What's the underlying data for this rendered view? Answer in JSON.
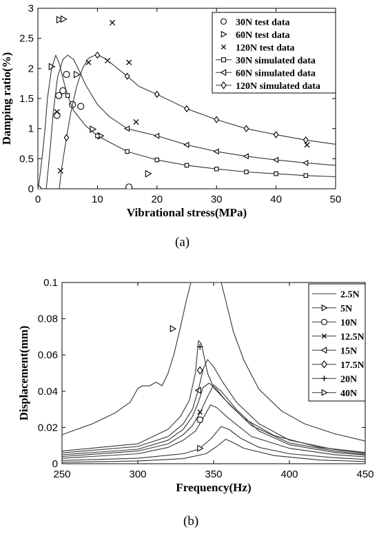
{
  "chart_data": [
    {
      "type": "line",
      "panel_label": "(a)",
      "xlabel": "Vibrational stress(MPa)",
      "ylabel": "Damping ratio(%)",
      "xlim": [
        0,
        50
      ],
      "ylim": [
        0,
        3
      ],
      "xticks": [
        0,
        10,
        20,
        30,
        40,
        50
      ],
      "yticks": [
        0,
        0.5,
        1,
        1.5,
        2,
        2.5,
        3
      ],
      "xtick_labels": [
        "0",
        "10",
        "20",
        "30",
        "40",
        "50"
      ],
      "ytick_labels": [
        "0",
        "0.5",
        "1",
        "1.5",
        "2",
        "2.5",
        "3"
      ],
      "legend_position": "top-right",
      "series": [
        {
          "name": "30N test data",
          "marker": "circle",
          "style": "markers",
          "points": [
            [
              0,
              0
            ],
            [
              3.2,
              1.22
            ],
            [
              3.5,
              1.55
            ],
            [
              4.2,
              1.63
            ],
            [
              4.8,
              1.9
            ],
            [
              5.8,
              1.4
            ],
            [
              7.2,
              1.37
            ],
            [
              15.3,
              0.03
            ]
          ]
        },
        {
          "name": "60N test data",
          "marker": "triangle-right",
          "style": "markers",
          "points": [
            [
              3.6,
              2.81
            ],
            [
              4.3,
              2.82
            ],
            [
              2.3,
              2.03
            ],
            [
              6.5,
              1.9
            ],
            [
              9.2,
              0.99
            ],
            [
              10.5,
              0.88
            ],
            [
              18.5,
              0.25
            ]
          ]
        },
        {
          "name": "120N test data",
          "marker": "x",
          "style": "markers",
          "points": [
            [
              3.2,
              1.28
            ],
            [
              3.8,
              0.3
            ],
            [
              8.5,
              2.1
            ],
            [
              11.7,
              2.13
            ],
            [
              12.5,
              2.76
            ],
            [
              15.3,
              2.1
            ],
            [
              16.5,
              1.11
            ],
            [
              45.2,
              0.73
            ]
          ]
        },
        {
          "name": "30N simulated data",
          "marker": "square",
          "style": "line",
          "points": [
            [
              0,
              0
            ],
            [
              0.2,
              0.1
            ],
            [
              0.8,
              0.6
            ],
            [
              1.2,
              1.0
            ],
            [
              1.6,
              1.5
            ],
            [
              2.3,
              2.0
            ],
            [
              3.0,
              2.22
            ],
            [
              3.6,
              2.08
            ],
            [
              4.5,
              1.72
            ],
            [
              5.0,
              1.55
            ],
            [
              6.0,
              1.3
            ],
            [
              8.0,
              1.05
            ],
            [
              10.0,
              0.88
            ],
            [
              15.0,
              0.62
            ],
            [
              20.0,
              0.48
            ],
            [
              25.0,
              0.39
            ],
            [
              30.0,
              0.33
            ],
            [
              35.0,
              0.28
            ],
            [
              40.0,
              0.25
            ],
            [
              45.0,
              0.22
            ],
            [
              50.0,
              0.2
            ]
          ],
          "marker_at": [
            5.0,
            10.0,
            15.0,
            20.0,
            25.0,
            30.0,
            35.0,
            40.0,
            45.0
          ]
        },
        {
          "name": "60N simulated data",
          "marker": "triangle-left",
          "style": "line",
          "points": [
            [
              1.4,
              0
            ],
            [
              2.0,
              0.6
            ],
            [
              2.6,
              1.3
            ],
            [
              3.3,
              1.85
            ],
            [
              4.2,
              2.15
            ],
            [
              5.0,
              2.22
            ],
            [
              6.0,
              2.15
            ],
            [
              7.0,
              1.95
            ],
            [
              8.0,
              1.73
            ],
            [
              10.0,
              1.4
            ],
            [
              12.0,
              1.2
            ],
            [
              15.0,
              1.0
            ],
            [
              20.0,
              0.88
            ],
            [
              25.0,
              0.73
            ],
            [
              30.0,
              0.62
            ],
            [
              35.0,
              0.54
            ],
            [
              40.0,
              0.48
            ],
            [
              45.0,
              0.43
            ],
            [
              50.0,
              0.39
            ]
          ],
          "marker_at": [
            15.0,
            20.0,
            25.0,
            30.0,
            35.0,
            40.0,
            45.0
          ]
        },
        {
          "name": "120N simulated data",
          "marker": "diamond",
          "style": "line",
          "points": [
            [
              3.6,
              0
            ],
            [
              4.0,
              0.35
            ],
            [
              4.8,
              0.85
            ],
            [
              5.5,
              1.25
            ],
            [
              6.5,
              1.7
            ],
            [
              7.5,
              2.0
            ],
            [
              8.5,
              2.17
            ],
            [
              9.8,
              2.23
            ],
            [
              11.0,
              2.18
            ],
            [
              12.5,
              2.07
            ],
            [
              15.0,
              1.87
            ],
            [
              17.0,
              1.7
            ],
            [
              20.0,
              1.57
            ],
            [
              25.0,
              1.33
            ],
            [
              30.0,
              1.15
            ],
            [
              35.0,
              1.0
            ],
            [
              40.0,
              0.9
            ],
            [
              45.0,
              0.81
            ],
            [
              50.0,
              0.74
            ]
          ],
          "marker_at": [
            4.8,
            10.0,
            15.0,
            20.0,
            25.0,
            30.0,
            35.0,
            40.0,
            45.0
          ]
        }
      ]
    },
    {
      "type": "line",
      "panel_label": "(b)",
      "xlabel": "Frequency(Hz)",
      "ylabel": "Displacement(mm)",
      "xlim": [
        250,
        450
      ],
      "ylim": [
        0,
        0.1
      ],
      "xticks": [
        250,
        300,
        350,
        400,
        450
      ],
      "yticks": [
        0,
        0.02,
        0.04,
        0.06,
        0.08,
        0.1
      ],
      "xtick_labels": [
        "250",
        "300",
        "350",
        "400",
        "450"
      ],
      "ytick_labels": [
        "0",
        "0.02",
        "0.04",
        "0.06",
        "0.08",
        "0.1"
      ],
      "legend_position": "top-right",
      "series": [
        {
          "name": "2.5N",
          "marker": "none",
          "points": [
            [
              250,
              0.0008
            ],
            [
              300,
              0.0015
            ],
            [
              330,
              0.0028
            ],
            [
              345,
              0.0055
            ],
            [
              352,
              0.0095
            ],
            [
              358,
              0.0135
            ],
            [
              362,
              0.012
            ],
            [
              370,
              0.0085
            ],
            [
              390,
              0.0045
            ],
            [
              420,
              0.002
            ],
            [
              450,
              0.0012
            ]
          ],
          "marker_point": null
        },
        {
          "name": "5N",
          "marker": "triangle-right",
          "points": [
            [
              250,
              0.0018
            ],
            [
              300,
              0.003
            ],
            [
              330,
              0.0055
            ],
            [
              340,
              0.008
            ],
            [
              348,
              0.0135
            ],
            [
              355,
              0.0205
            ],
            [
              360,
              0.019
            ],
            [
              368,
              0.014
            ],
            [
              380,
              0.009
            ],
            [
              400,
              0.0055
            ],
            [
              430,
              0.0033
            ],
            [
              450,
              0.0024
            ]
          ],
          "marker_point": [
            341,
            0.0085
          ]
        },
        {
          "name": "10N",
          "marker": "circle",
          "points": [
            [
              250,
              0.003
            ],
            [
              300,
              0.0055
            ],
            [
              320,
              0.009
            ],
            [
              330,
              0.013
            ],
            [
              338,
              0.018
            ],
            [
              343,
              0.025
            ],
            [
              348,
              0.0325
            ],
            [
              352,
              0.031
            ],
            [
              360,
              0.025
            ],
            [
              375,
              0.015
            ],
            [
              400,
              0.0085
            ],
            [
              430,
              0.005
            ],
            [
              450,
              0.0038
            ]
          ],
          "marker_point": [
            341,
            0.0243
          ]
        },
        {
          "name": "12.5N",
          "marker": "x",
          "points": [
            [
              250,
              0.004
            ],
            [
              300,
              0.007
            ],
            [
              320,
              0.011
            ],
            [
              330,
              0.016
            ],
            [
              336,
              0.021
            ],
            [
              341,
              0.028
            ],
            [
              346,
              0.037
            ],
            [
              350,
              0.0435
            ],
            [
              355,
              0.04
            ],
            [
              365,
              0.03
            ],
            [
              380,
              0.018
            ],
            [
              400,
              0.0105
            ],
            [
              430,
              0.0062
            ],
            [
              450,
              0.0047
            ]
          ],
          "marker_point": [
            341,
            0.0285
          ]
        },
        {
          "name": "15N",
          "marker": "triangle-left",
          "points": [
            [
              250,
              0.005
            ],
            [
              300,
              0.008
            ],
            [
              320,
              0.013
            ],
            [
              330,
              0.019
            ],
            [
              336,
              0.026
            ],
            [
              340,
              0.034
            ],
            [
              343,
              0.042
            ],
            [
              347,
              0.0445
            ],
            [
              352,
              0.041
            ],
            [
              360,
              0.033
            ],
            [
              375,
              0.021
            ],
            [
              400,
              0.0115
            ],
            [
              430,
              0.007
            ],
            [
              450,
              0.0052
            ]
          ],
          "marker_point": [
            340,
            0.0405
          ]
        },
        {
          "name": "17.5N",
          "marker": "diamond",
          "points": [
            [
              250,
              0.006
            ],
            [
              300,
              0.0095
            ],
            [
              320,
              0.015
            ],
            [
              330,
              0.022
            ],
            [
              336,
              0.03
            ],
            [
              340,
              0.041
            ],
            [
              343,
              0.052
            ],
            [
              346,
              0.0575
            ],
            [
              350,
              0.0535
            ],
            [
              356,
              0.045
            ],
            [
              365,
              0.034
            ],
            [
              380,
              0.022
            ],
            [
              400,
              0.013
            ],
            [
              430,
              0.0078
            ],
            [
              450,
              0.0058
            ]
          ],
          "marker_point": [
            341,
            0.0515
          ]
        },
        {
          "name": "20N",
          "marker": "plus",
          "points": [
            [
              250,
              0.007
            ],
            [
              300,
              0.011
            ],
            [
              320,
              0.019
            ],
            [
              328,
              0.026
            ],
            [
              334,
              0.035
            ],
            [
              338,
              0.05
            ],
            [
              340,
              0.068
            ],
            [
              342,
              0.066
            ],
            [
              346,
              0.05
            ],
            [
              350,
              0.042
            ],
            [
              358,
              0.035
            ],
            [
              370,
              0.025
            ],
            [
              390,
              0.0155
            ],
            [
              420,
              0.009
            ],
            [
              450,
              0.0062
            ]
          ],
          "marker_point": [
            341,
            0.0645
          ]
        },
        {
          "name": "40N",
          "marker": "triangle-right",
          "points": [
            [
              250,
              0.016
            ],
            [
              270,
              0.022
            ],
            [
              285,
              0.028
            ],
            [
              295,
              0.034
            ],
            [
              300,
              0.0415
            ],
            [
              303,
              0.043
            ],
            [
              308,
              0.043
            ],
            [
              312,
              0.045
            ],
            [
              316,
              0.043
            ],
            [
              320,
              0.05
            ],
            [
              324,
              0.061
            ],
            [
              328,
              0.075
            ],
            [
              332,
              0.09
            ],
            [
              335,
              0.1
            ],
            [
              350,
              0.1
            ],
            [
              355,
              0.1
            ],
            [
              358,
              0.09
            ],
            [
              363,
              0.073
            ],
            [
              370,
              0.057
            ],
            [
              380,
              0.041
            ],
            [
              395,
              0.029
            ],
            [
              410,
              0.022
            ],
            [
              430,
              0.0165
            ],
            [
              450,
              0.0125
            ]
          ],
          "marker_point": [
            323,
            0.0745
          ]
        }
      ]
    }
  ]
}
